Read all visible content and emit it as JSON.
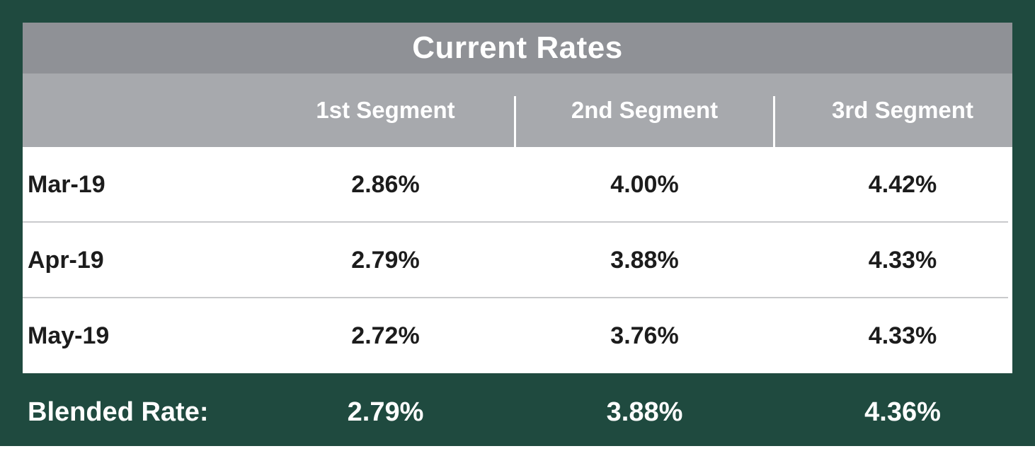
{
  "chart_data": {
    "type": "table",
    "title": "Current Rates",
    "columns": [
      "",
      "1st Segment",
      "2nd Segment",
      "3rd Segment"
    ],
    "rows": [
      {
        "label": "Mar-19",
        "values": [
          "2.86%",
          "4.00%",
          "4.42%"
        ]
      },
      {
        "label": "Apr-19",
        "values": [
          "2.79%",
          "3.88%",
          "4.33%"
        ]
      },
      {
        "label": "May-19",
        "values": [
          "2.72%",
          "3.76%",
          "4.33%"
        ]
      }
    ],
    "summary": {
      "label": "Blended Rate:",
      "values": [
        "2.79%",
        "3.88%",
        "4.36%"
      ]
    }
  },
  "colors": {
    "frame": "#1f4a3f",
    "title_bar": "#8f9196",
    "header_row": "#a7a9ad",
    "body": "#ffffff",
    "text_dark": "#1c1c1c",
    "text_light": "#ffffff"
  }
}
